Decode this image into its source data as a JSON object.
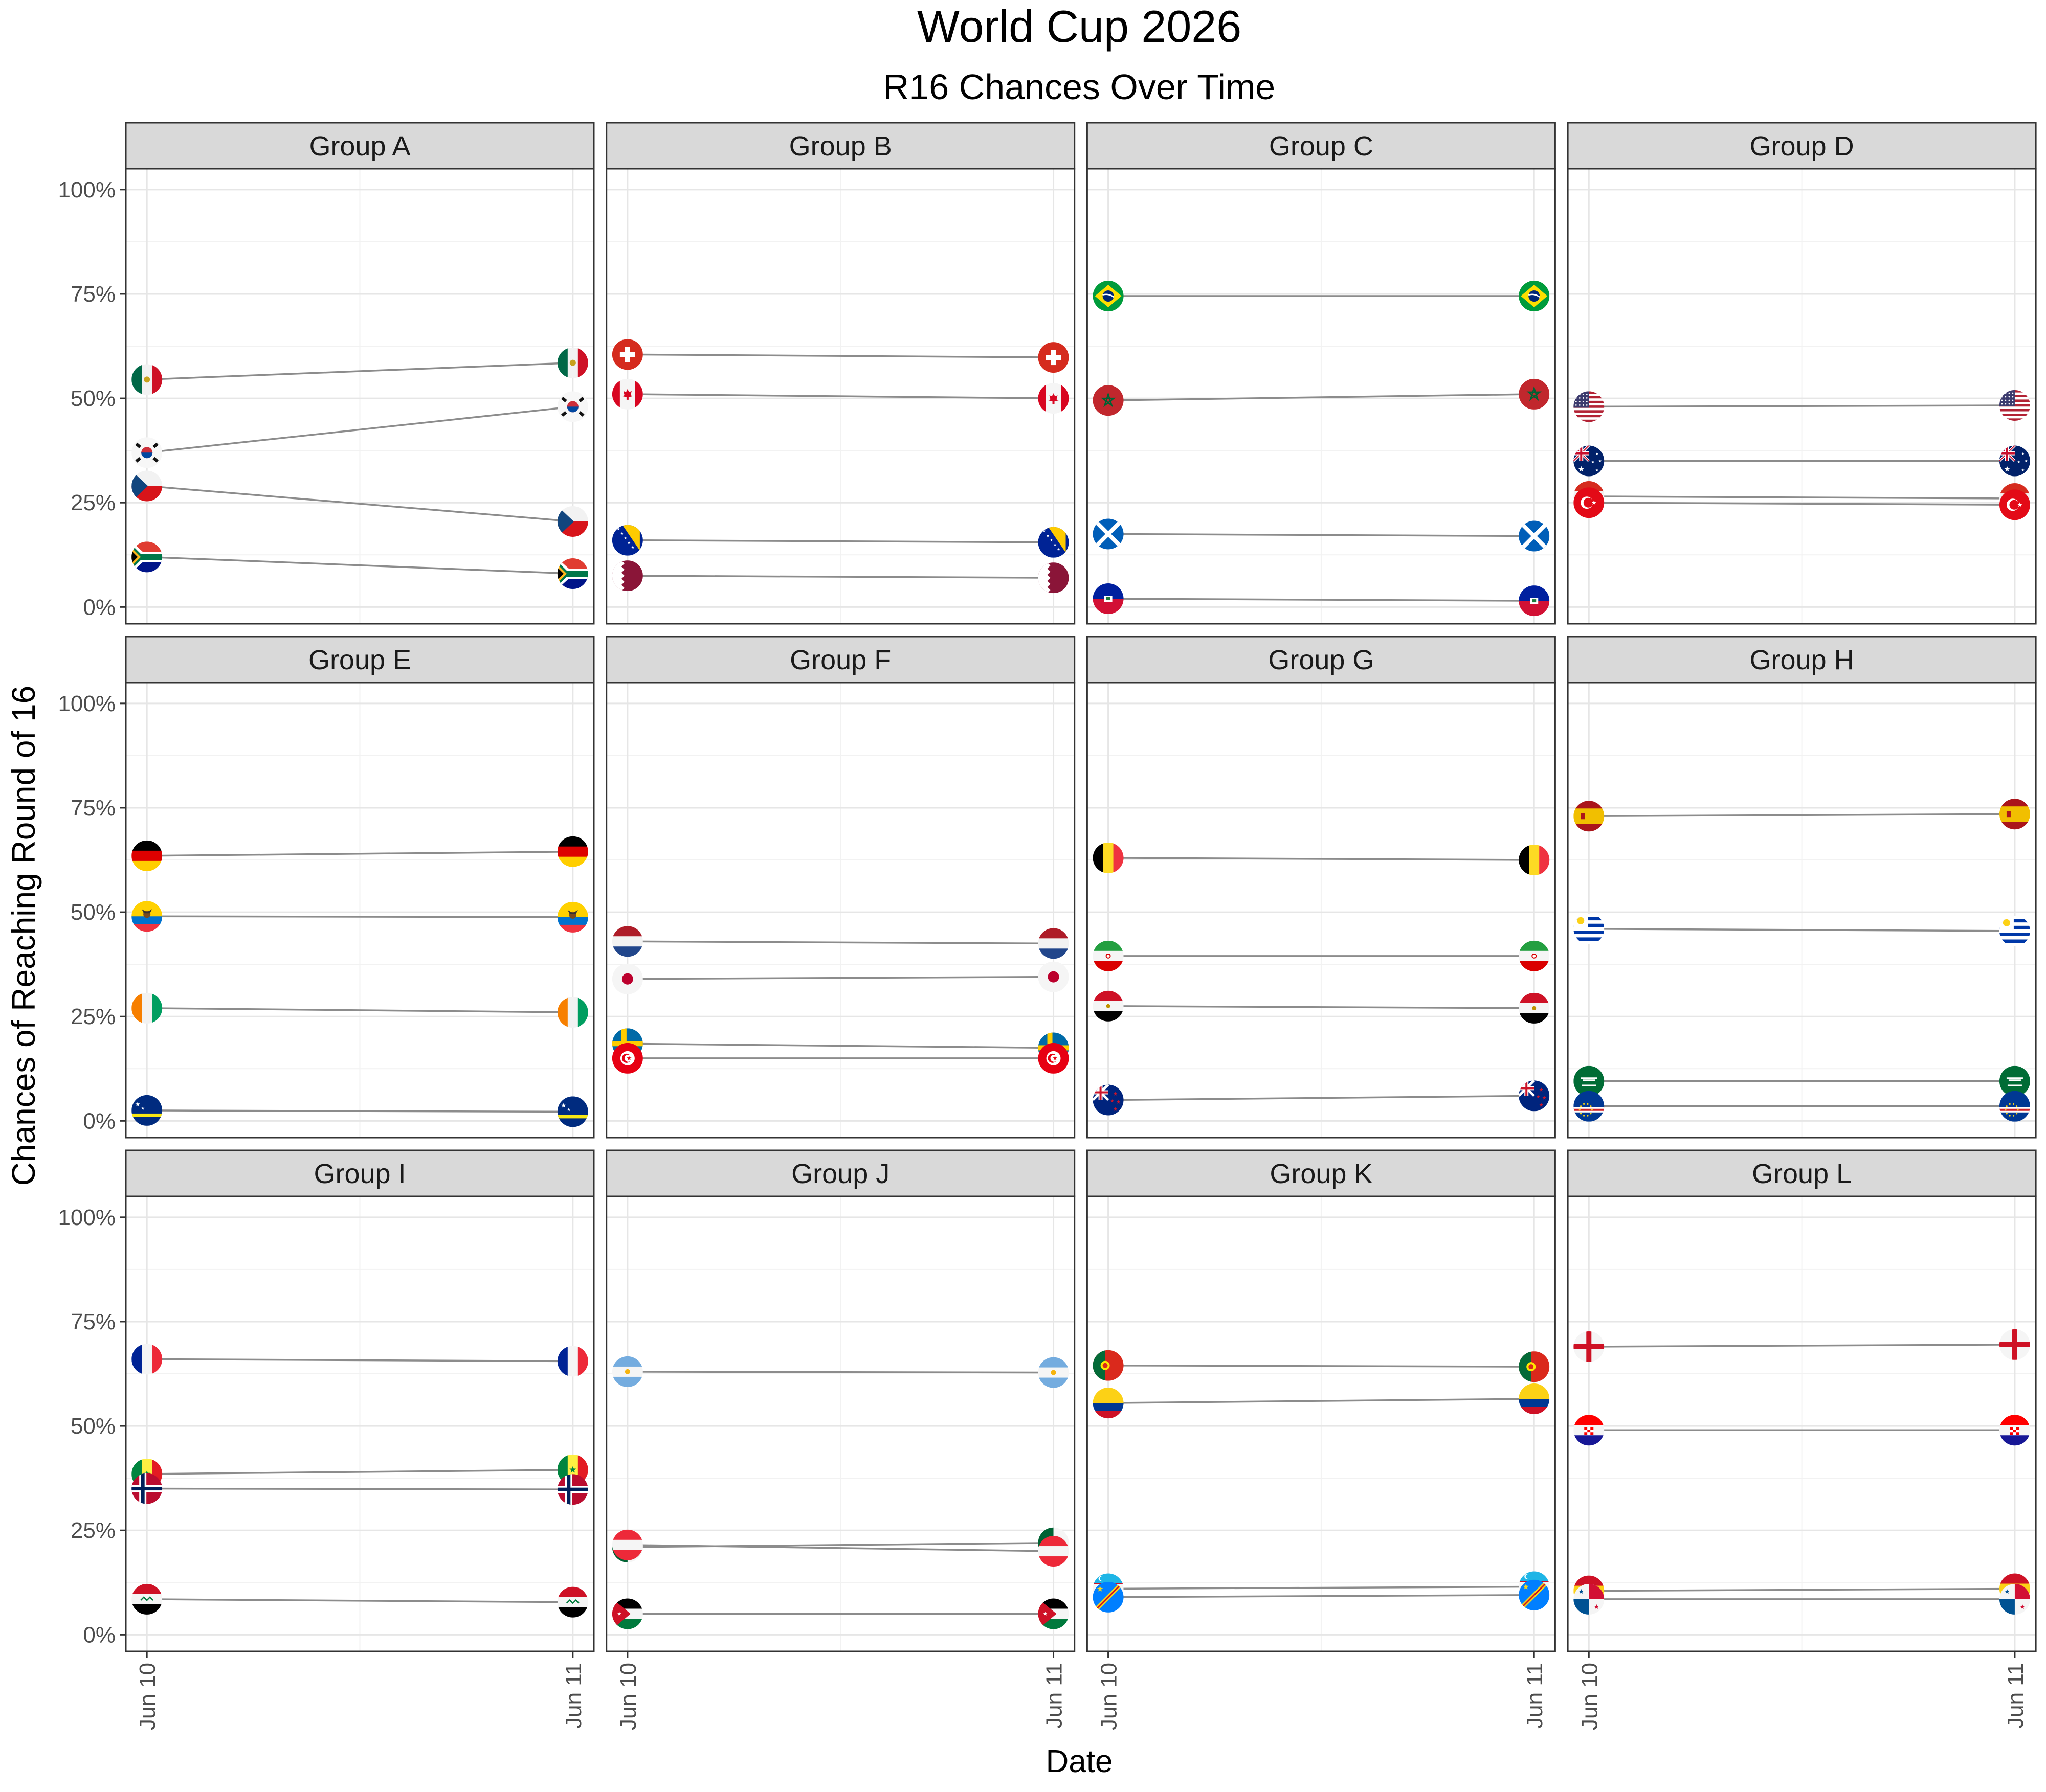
{
  "title": "World Cup 2026",
  "subtitle": "R16 Chances Over Time",
  "chart_data": {
    "type": "line",
    "title": "World Cup 2026",
    "subtitle": "R16 Chances Over Time",
    "xlabel": "Date",
    "ylabel": "Chances of Reaching Round of 16",
    "x": [
      "Jun 10",
      "Jun 11"
    ],
    "ylim": [
      -0.04,
      1.05
    ],
    "yticks": [
      0,
      0.25,
      0.5,
      0.75,
      1.0
    ],
    "ytick_labels": [
      "0%",
      "25%",
      "50%",
      "75%",
      "100%"
    ],
    "grid": true,
    "legend": "none",
    "line_color": "#8c8c8c",
    "panels": [
      {
        "group": "Group A",
        "series": [
          {
            "icon": "mexico-flag-icon",
            "values": [
              0.545,
              0.585
            ]
          },
          {
            "icon": "south-korea-flag-icon",
            "values": [
              0.37,
              0.48
            ]
          },
          {
            "icon": "czechia-flag-icon",
            "values": [
              0.29,
              0.205
            ]
          },
          {
            "icon": "south-africa-flag-icon",
            "values": [
              0.12,
              0.08
            ]
          }
        ]
      },
      {
        "group": "Group B",
        "series": [
          {
            "icon": "switzerland-flag-icon",
            "values": [
              0.605,
              0.598
            ]
          },
          {
            "icon": "canada-flag-icon",
            "values": [
              0.51,
              0.5
            ]
          },
          {
            "icon": "bosnia-flag-icon",
            "values": [
              0.16,
              0.155
            ]
          },
          {
            "icon": "qatar-flag-icon",
            "values": [
              0.075,
              0.07
            ]
          }
        ]
      },
      {
        "group": "Group C",
        "series": [
          {
            "icon": "brazil-flag-icon",
            "values": [
              0.745,
              0.745
            ]
          },
          {
            "icon": "morocco-flag-icon",
            "values": [
              0.495,
              0.51
            ]
          },
          {
            "icon": "scotland-flag-icon",
            "values": [
              0.175,
              0.17
            ]
          },
          {
            "icon": "haiti-flag-icon",
            "values": [
              0.02,
              0.015
            ]
          }
        ]
      },
      {
        "group": "Group D",
        "series": [
          {
            "icon": "usa-flag-icon",
            "values": [
              0.48,
              0.483
            ]
          },
          {
            "icon": "australia-flag-icon",
            "values": [
              0.35,
              0.35
            ]
          },
          {
            "icon": "paraguay-flag-icon",
            "values": [
              0.265,
              0.26
            ]
          },
          {
            "icon": "turkey-flag-icon",
            "values": [
              0.25,
              0.245
            ]
          }
        ]
      },
      {
        "group": "Group E",
        "series": [
          {
            "icon": "germany-flag-icon",
            "values": [
              0.635,
              0.645
            ]
          },
          {
            "icon": "ecuador-flag-icon",
            "values": [
              0.49,
              0.488
            ]
          },
          {
            "icon": "ivory-coast-flag-icon",
            "values": [
              0.27,
              0.26
            ]
          },
          {
            "icon": "curacao-flag-icon",
            "values": [
              0.025,
              0.022
            ]
          }
        ]
      },
      {
        "group": "Group F",
        "series": [
          {
            "icon": "netherlands-flag-icon",
            "values": [
              0.43,
              0.425
            ]
          },
          {
            "icon": "japan-flag-icon",
            "values": [
              0.34,
              0.345
            ]
          },
          {
            "icon": "sweden-flag-icon",
            "values": [
              0.185,
              0.175
            ]
          },
          {
            "icon": "tunisia-flag-icon",
            "values": [
              0.15,
              0.15
            ]
          }
        ]
      },
      {
        "group": "Group G",
        "series": [
          {
            "icon": "belgium-flag-icon",
            "values": [
              0.63,
              0.625
            ]
          },
          {
            "icon": "iran-flag-icon",
            "values": [
              0.395,
              0.395
            ]
          },
          {
            "icon": "egypt-flag-icon",
            "values": [
              0.275,
              0.27
            ]
          },
          {
            "icon": "new-zealand-flag-icon",
            "values": [
              0.05,
              0.06
            ]
          }
        ]
      },
      {
        "group": "Group H",
        "series": [
          {
            "icon": "spain-flag-icon",
            "values": [
              0.73,
              0.735
            ]
          },
          {
            "icon": "uruguay-flag-icon",
            "values": [
              0.46,
              0.455
            ]
          },
          {
            "icon": "saudi-arabia-flag-icon",
            "values": [
              0.095,
              0.095
            ]
          },
          {
            "icon": "cape-verde-flag-icon",
            "values": [
              0.035,
              0.035
            ]
          }
        ]
      },
      {
        "group": "Group I",
        "series": [
          {
            "icon": "france-flag-icon",
            "values": [
              0.66,
              0.655
            ]
          },
          {
            "icon": "senegal-flag-icon",
            "values": [
              0.385,
              0.395
            ]
          },
          {
            "icon": "norway-flag-icon",
            "values": [
              0.35,
              0.348
            ]
          },
          {
            "icon": "iraq-flag-icon",
            "values": [
              0.085,
              0.078
            ]
          }
        ]
      },
      {
        "group": "Group J",
        "series": [
          {
            "icon": "argentina-flag-icon",
            "values": [
              0.63,
              0.628
            ]
          },
          {
            "icon": "algeria-flag-icon",
            "values": [
              0.21,
              0.22
            ]
          },
          {
            "icon": "austria-flag-icon",
            "values": [
              0.215,
              0.2
            ]
          },
          {
            "icon": "jordan-flag-icon",
            "values": [
              0.05,
              0.05
            ]
          }
        ]
      },
      {
        "group": "Group K",
        "series": [
          {
            "icon": "portugal-flag-icon",
            "values": [
              0.645,
              0.642
            ]
          },
          {
            "icon": "colombia-flag-icon",
            "values": [
              0.555,
              0.565
            ]
          },
          {
            "icon": "uzbekistan-flag-icon",
            "values": [
              0.11,
              0.115
            ]
          },
          {
            "icon": "dr-congo-flag-icon",
            "values": [
              0.09,
              0.095
            ]
          }
        ]
      },
      {
        "group": "Group L",
        "series": [
          {
            "icon": "england-flag-icon",
            "values": [
              0.69,
              0.695
            ]
          },
          {
            "icon": "croatia-flag-icon",
            "values": [
              0.49,
              0.49
            ]
          },
          {
            "icon": "ghana-flag-icon",
            "values": [
              0.105,
              0.11
            ]
          },
          {
            "icon": "panama-flag-icon",
            "values": [
              0.085,
              0.085
            ]
          }
        ]
      }
    ]
  }
}
